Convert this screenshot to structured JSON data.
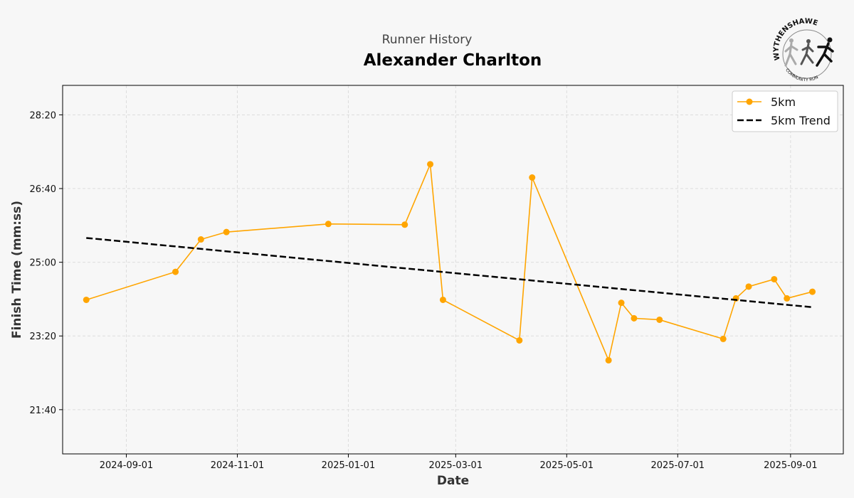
{
  "header": {
    "subtitle": "Runner History",
    "title": "Alexander Charlton"
  },
  "logo": {
    "text_top": "WYTHENSHAWE",
    "text_bottom": "COMMUNITY RUN",
    "icon": "runners-logo-icon"
  },
  "chart_data": {
    "type": "line",
    "xlabel": "Date",
    "ylabel": "Finish Time (mm:ss)",
    "x_type": "date",
    "xlim": [
      "2024-07-28",
      "2025-09-30"
    ],
    "ylim": [
      "20:40",
      "29:00"
    ],
    "x_ticks": [
      "2024-09-01",
      "2024-11-01",
      "2025-01-01",
      "2025-03-01",
      "2025-05-01",
      "2025-07-01",
      "2025-09-01"
    ],
    "y_ticks": [
      "21:40",
      "23:20",
      "25:00",
      "26:40",
      "28:20"
    ],
    "grid": true,
    "legend_position": "top-right",
    "series": [
      {
        "name": "5km",
        "color": "#FFA500",
        "style": "solid-with-markers",
        "x": [
          "2024-08-10",
          "2024-09-28",
          "2024-10-12",
          "2024-10-26",
          "2024-12-21",
          "2025-02-01",
          "2025-02-15",
          "2025-02-22",
          "2025-04-05",
          "2025-04-12",
          "2025-05-24",
          "2025-05-31",
          "2025-06-07",
          "2025-06-21",
          "2025-07-26",
          "2025-08-02",
          "2025-08-09",
          "2025-08-23",
          "2025-08-30",
          "2025-09-13"
        ],
        "y": [
          "24:09",
          "24:47",
          "25:31",
          "25:41",
          "25:52",
          "25:51",
          "27:13",
          "24:09",
          "23:14",
          "26:55",
          "22:47",
          "24:05",
          "23:44",
          "23:42",
          "23:16",
          "24:11",
          "24:27",
          "24:37",
          "24:11",
          "24:20"
        ]
      },
      {
        "name": "5km Trend",
        "color": "#000000",
        "style": "dashed",
        "x": [
          "2024-08-10",
          "2025-09-13"
        ],
        "y": [
          "25:33",
          "23:59"
        ]
      }
    ]
  }
}
